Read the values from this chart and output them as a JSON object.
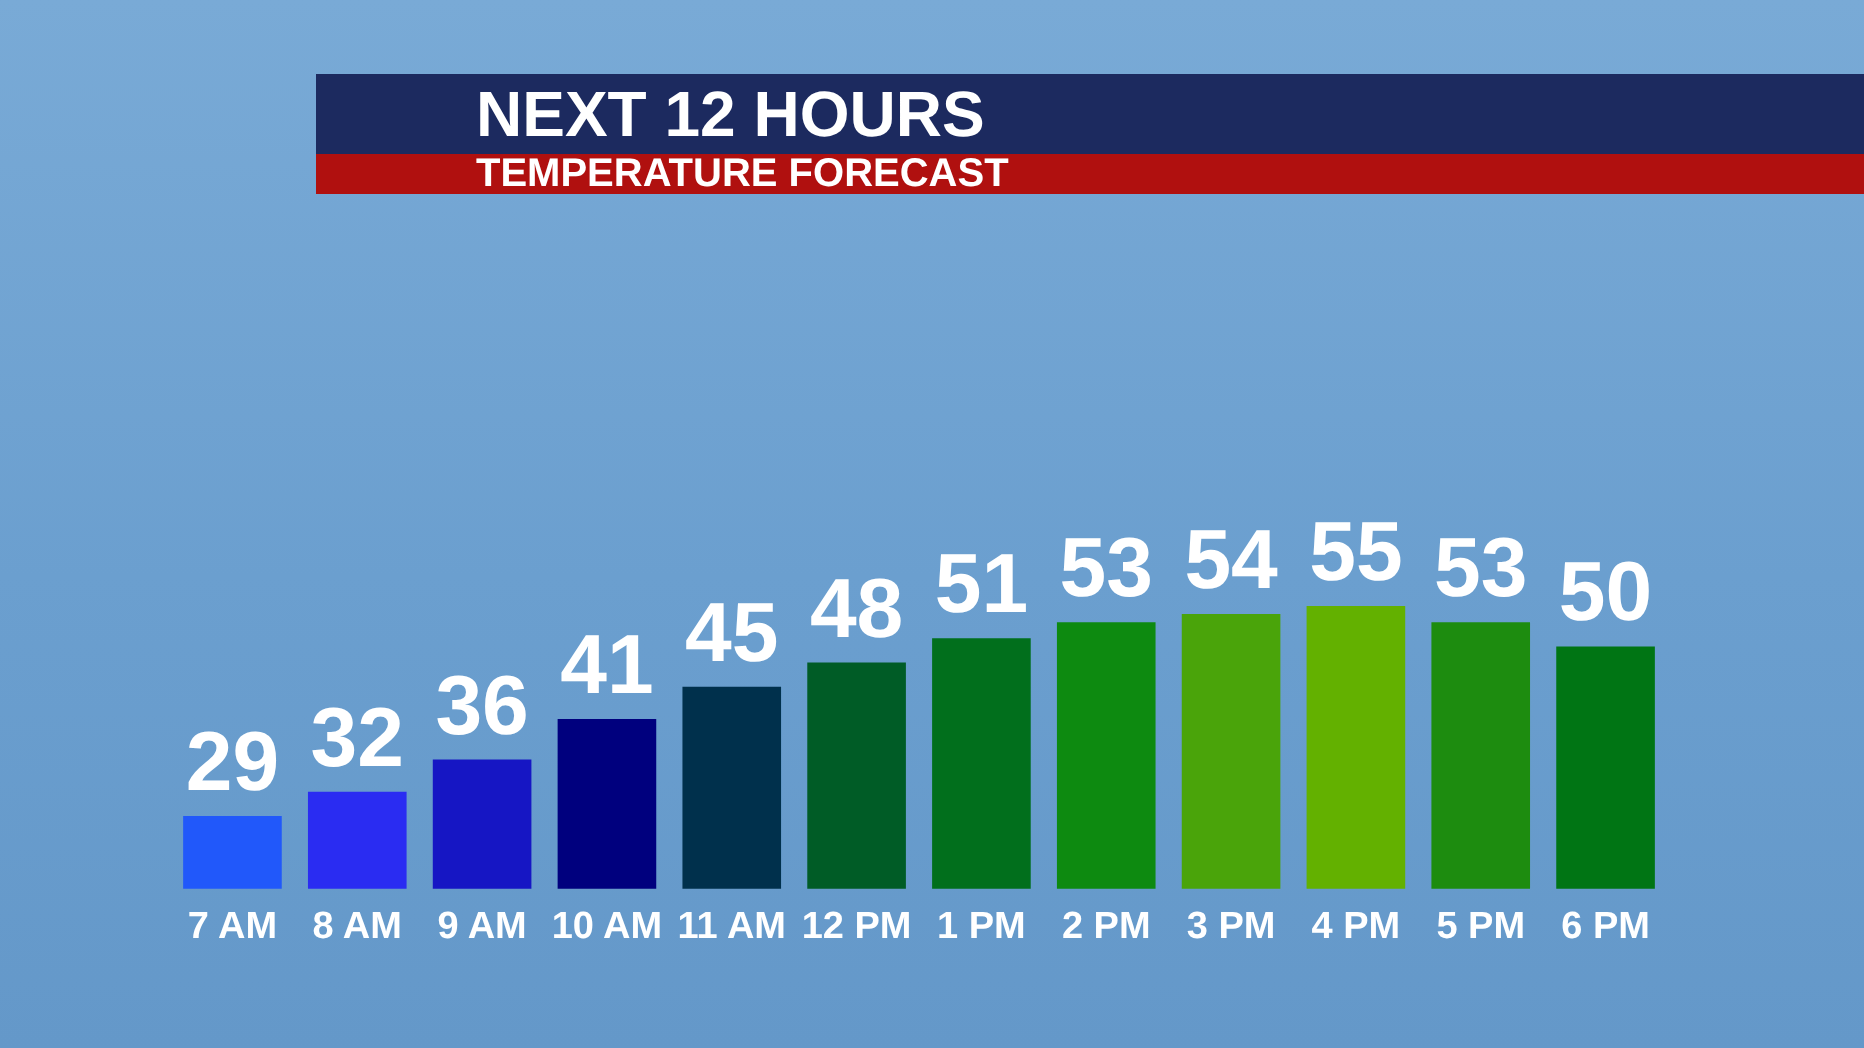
{
  "chart_data": {
    "type": "bar",
    "title": "NEXT 12 HOURS",
    "subtitle": "TEMPERATURE FORECAST",
    "categories": [
      "7 AM",
      "8 AM",
      "9 AM",
      "10 AM",
      "11 AM",
      "12 PM",
      "1 PM",
      "2 PM",
      "3 PM",
      "4 PM",
      "5 PM",
      "6 PM"
    ],
    "values": [
      29,
      32,
      36,
      41,
      45,
      48,
      51,
      53,
      54,
      55,
      53,
      50
    ],
    "colors": [
      "#2158fa",
      "#2a2cf2",
      "#1616c4",
      "#00007e",
      "#00304c",
      "#005c26",
      "#016f1c",
      "#0d8a10",
      "#4aa40a",
      "#63b100",
      "#1d8c0f",
      "#007514"
    ],
    "ylim": [
      20,
      55
    ],
    "data_labels": true
  }
}
